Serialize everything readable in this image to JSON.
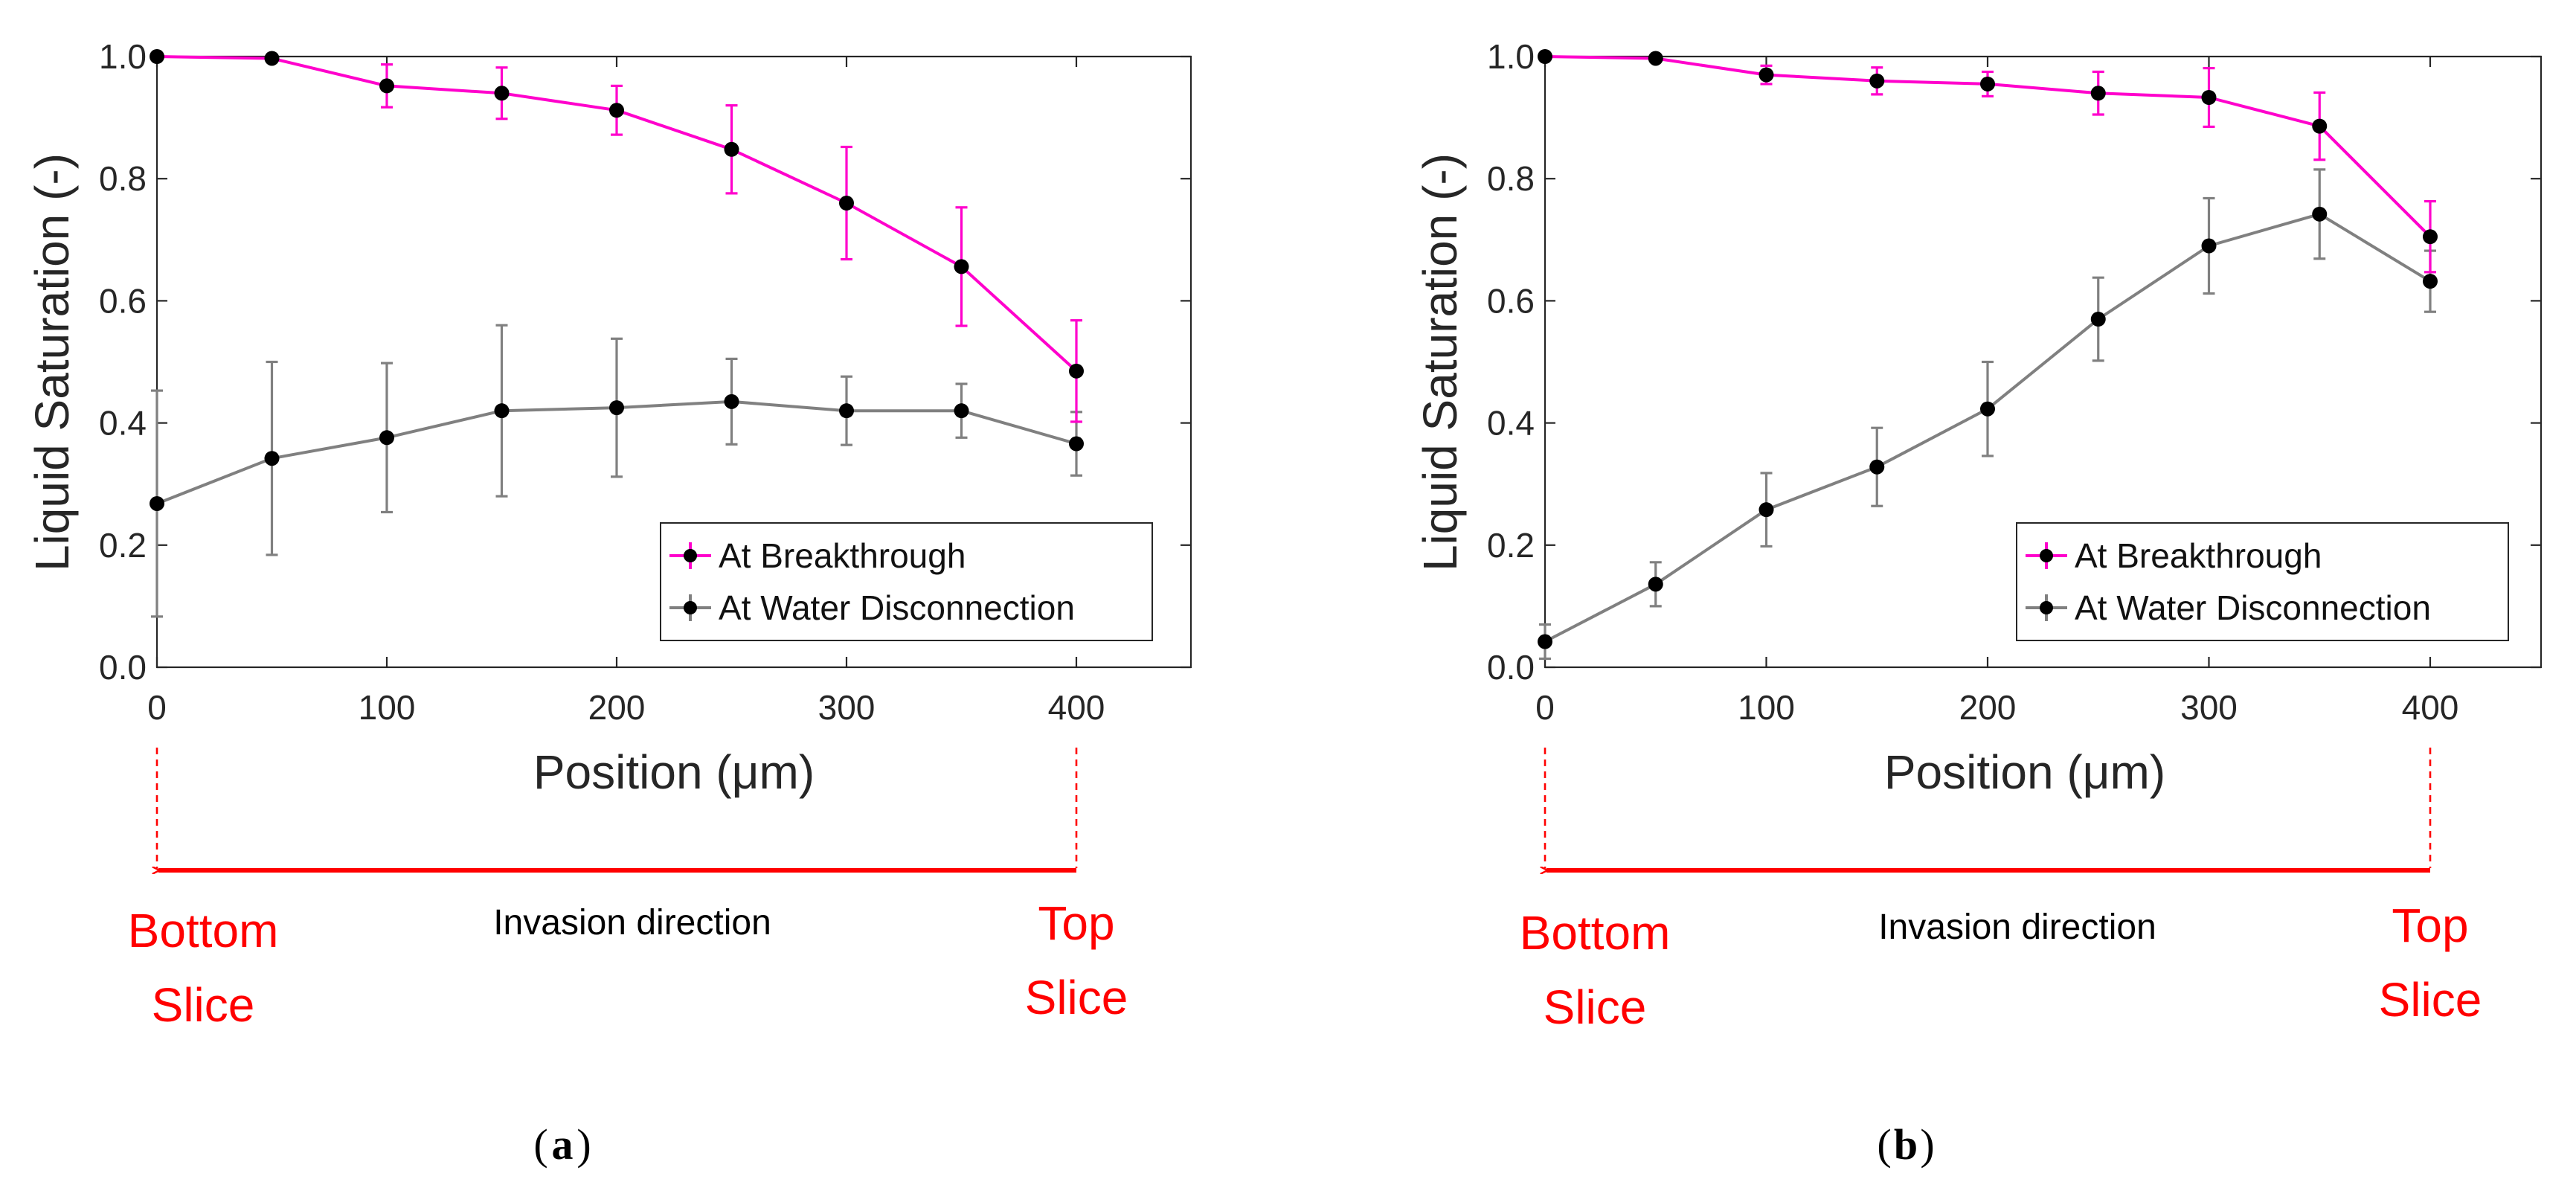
{
  "chart_data": [
    {
      "type": "line",
      "panel_label": "a",
      "xlabel": "Position (μm)",
      "ylabel": "Liquid Saturation (-)",
      "xlim": [
        0,
        450
      ],
      "ylim": [
        0,
        1.0
      ],
      "x_ticks": [
        "0",
        "100",
        "200",
        "300",
        "400"
      ],
      "y_ticks": [
        "0.0",
        "0.2",
        "0.4",
        "0.6",
        "0.8",
        "1.0"
      ],
      "legend_position": "bottom-right",
      "x": [
        0,
        50,
        100,
        150,
        200,
        250,
        300,
        350,
        400
      ],
      "series": [
        {
          "name": "At Breakthrough",
          "color": "#ff00cc",
          "values": [
            1.0,
            0.997,
            0.952,
            0.94,
            0.912,
            0.848,
            0.76,
            0.656,
            0.485
          ],
          "errors": [
            0.0,
            0.0,
            0.035,
            0.042,
            0.04,
            0.072,
            0.092,
            0.097,
            0.083
          ]
        },
        {
          "name": "At Water Disconnection",
          "color": "#808080",
          "values": [
            0.268,
            0.342,
            0.376,
            0.42,
            0.425,
            0.435,
            0.42,
            0.42,
            0.366
          ],
          "errors": [
            0.185,
            0.158,
            0.122,
            0.14,
            0.113,
            0.07,
            0.056,
            0.044,
            0.052
          ]
        }
      ],
      "annotations": {
        "left_label": [
          "Bottom",
          "Slice"
        ],
        "right_label": [
          "Top",
          "Slice"
        ],
        "direction_text": "Invasion direction"
      }
    },
    {
      "type": "line",
      "panel_label": "b",
      "xlabel": "Position (μm)",
      "ylabel": "Liquid Saturation (-)",
      "xlim": [
        0,
        450
      ],
      "ylim": [
        0,
        1.0
      ],
      "x_ticks": [
        "0",
        "100",
        "200",
        "300",
        "400"
      ],
      "y_ticks": [
        "0.0",
        "0.2",
        "0.4",
        "0.6",
        "0.8",
        "1.0"
      ],
      "legend_position": "bottom-right",
      "x": [
        0,
        50,
        100,
        150,
        200,
        250,
        300,
        350,
        400
      ],
      "series": [
        {
          "name": "At Breakthrough",
          "color": "#ff00cc",
          "values": [
            1.0,
            0.997,
            0.97,
            0.96,
            0.955,
            0.94,
            0.933,
            0.886,
            0.705
          ],
          "errors": [
            0.0,
            0.0,
            0.015,
            0.022,
            0.02,
            0.035,
            0.048,
            0.055,
            0.058
          ]
        },
        {
          "name": "At Water Disconnection",
          "color": "#808080",
          "values": [
            0.042,
            0.136,
            0.258,
            0.328,
            0.423,
            0.57,
            0.69,
            0.742,
            0.632
          ],
          "errors": [
            0.028,
            0.036,
            0.06,
            0.064,
            0.077,
            0.068,
            0.078,
            0.073,
            0.05
          ]
        }
      ],
      "annotations": {
        "left_label": [
          "Bottom",
          "Slice"
        ],
        "right_label": [
          "Top",
          "Slice"
        ],
        "direction_text": "Invasion direction"
      }
    }
  ]
}
